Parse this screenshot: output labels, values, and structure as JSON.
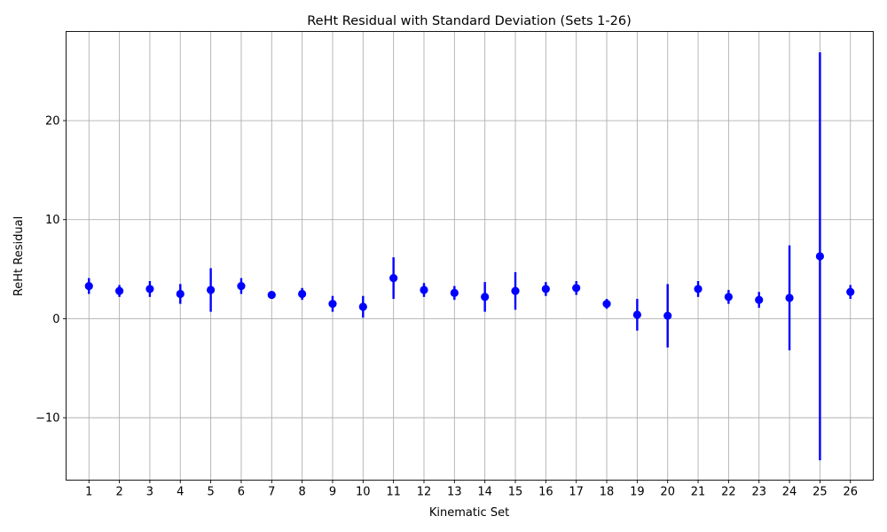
{
  "chart_data": {
    "type": "scatter",
    "title": "ReHt Residual with Standard Deviation (Sets 1-26)",
    "xlabel": "Kinematic Set",
    "ylabel": "ReHt Residual",
    "x": [
      1,
      2,
      3,
      4,
      5,
      6,
      7,
      8,
      9,
      10,
      11,
      12,
      13,
      14,
      15,
      16,
      17,
      18,
      19,
      20,
      21,
      22,
      23,
      24,
      25,
      26
    ],
    "x_tick_labels": [
      "1",
      "2",
      "3",
      "4",
      "5",
      "6",
      "7",
      "8",
      "9",
      "10",
      "11",
      "12",
      "13",
      "14",
      "15",
      "16",
      "17",
      "18",
      "19",
      "20",
      "21",
      "22",
      "23",
      "24",
      "25",
      "26"
    ],
    "y_ticks": [
      -10,
      0,
      10,
      20
    ],
    "y_tick_labels": [
      "−10",
      "0",
      "10",
      "20"
    ],
    "xlim": [
      0.25,
      26.75
    ],
    "ylim": [
      -16.3,
      29.0
    ],
    "grid": true,
    "series": [
      {
        "values": [
          3.3,
          2.8,
          3.0,
          2.5,
          2.9,
          3.3,
          2.4,
          2.5,
          1.5,
          1.2,
          4.1,
          2.9,
          2.6,
          2.2,
          2.8,
          3.0,
          3.1,
          1.5,
          0.4,
          0.3,
          3.0,
          2.2,
          1.9,
          2.1,
          6.3,
          2.7
        ],
        "std": [
          0.8,
          0.6,
          0.8,
          1.0,
          2.2,
          0.8,
          0.3,
          0.6,
          0.8,
          1.1,
          2.1,
          0.7,
          0.7,
          1.5,
          1.9,
          0.7,
          0.7,
          0.5,
          1.6,
          3.2,
          0.8,
          0.7,
          0.8,
          5.3,
          20.6,
          0.7
        ],
        "color": "#0000ff"
      }
    ]
  }
}
